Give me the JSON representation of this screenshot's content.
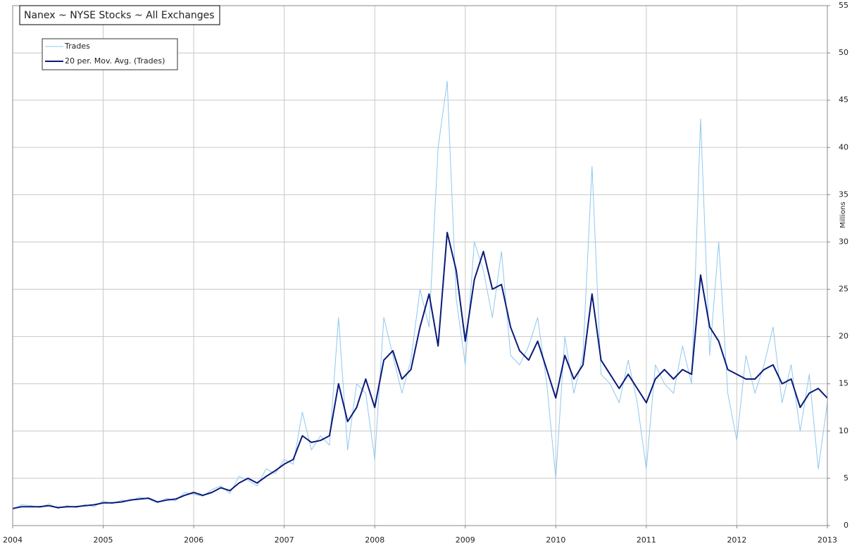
{
  "chart_data": {
    "type": "line",
    "title": "Nanex ~ NYSE Stocks ~ All Exchanges",
    "y_label": "Millions",
    "x": [
      2004.0,
      2004.1,
      2004.2,
      2004.3,
      2004.4,
      2004.5,
      2004.6,
      2004.7,
      2004.8,
      2004.9,
      2005.0,
      2005.1,
      2005.2,
      2005.3,
      2005.4,
      2005.5,
      2005.6,
      2005.7,
      2005.8,
      2005.9,
      2006.0,
      2006.1,
      2006.2,
      2006.3,
      2006.4,
      2006.5,
      2006.6,
      2006.7,
      2006.8,
      2006.9,
      2007.0,
      2007.1,
      2007.2,
      2007.3,
      2007.4,
      2007.5,
      2007.6,
      2007.7,
      2007.8,
      2007.9,
      2008.0,
      2008.1,
      2008.2,
      2008.3,
      2008.4,
      2008.5,
      2008.6,
      2008.7,
      2008.8,
      2008.9,
      2009.0,
      2009.1,
      2009.2,
      2009.3,
      2009.4,
      2009.5,
      2009.6,
      2009.7,
      2009.8,
      2009.9,
      2010.0,
      2010.1,
      2010.2,
      2010.3,
      2010.4,
      2010.5,
      2010.6,
      2010.7,
      2010.8,
      2010.9,
      2011.0,
      2011.1,
      2011.2,
      2011.3,
      2011.4,
      2011.5,
      2011.6,
      2011.7,
      2011.8,
      2011.9,
      2012.0,
      2012.1,
      2012.2,
      2012.3,
      2012.4,
      2012.5,
      2012.6,
      2012.7,
      2012.8,
      2012.9,
      2013.0
    ],
    "series": [
      {
        "name": "Trades",
        "color": "#8ec8f0",
        "width": 1,
        "values": [
          1.7,
          2.2,
          2.1,
          1.9,
          2.3,
          1.8,
          2.1,
          1.9,
          2.2,
          2.0,
          2.6,
          2.3,
          2.7,
          2.6,
          3.0,
          2.8,
          2.4,
          2.9,
          2.6,
          3.5,
          3.3,
          3.1,
          3.8,
          4.2,
          3.4,
          5.2,
          4.8,
          4.2,
          6.0,
          5.5,
          7.0,
          6.5,
          12.0,
          8.0,
          9.5,
          8.5,
          22.0,
          8.0,
          15.0,
          14.0,
          7.0,
          22.0,
          18.0,
          14.0,
          17.5,
          25.0,
          21.0,
          40.0,
          47.0,
          24.0,
          17.0,
          30.0,
          27.0,
          22.0,
          29.0,
          18.0,
          17.0,
          19.0,
          22.0,
          15.0,
          5.0,
          20.0,
          14.0,
          18.0,
          38.0,
          16.0,
          15.0,
          13.0,
          17.5,
          13.0,
          6.0,
          17.0,
          15.0,
          14.0,
          19.0,
          15.0,
          43.0,
          18.0,
          30.0,
          14.0,
          9.0,
          18.0,
          14.0,
          17.0,
          21.0,
          13.0,
          17.0,
          10.0,
          16.0,
          6.0,
          13.0
        ]
      },
      {
        "name": "20 per. Mov. Avg. (Trades)",
        "color": "#0a1a7a",
        "width": 2,
        "values": [
          1.8,
          2.0,
          2.0,
          2.0,
          2.1,
          1.9,
          2.0,
          2.0,
          2.1,
          2.2,
          2.4,
          2.4,
          2.5,
          2.7,
          2.8,
          2.9,
          2.5,
          2.7,
          2.8,
          3.2,
          3.5,
          3.2,
          3.5,
          4.0,
          3.7,
          4.5,
          5.0,
          4.5,
          5.2,
          5.8,
          6.5,
          7.0,
          9.5,
          8.8,
          9.0,
          9.5,
          15.0,
          11.0,
          12.5,
          15.5,
          12.5,
          17.5,
          18.5,
          15.5,
          16.5,
          21.0,
          24.5,
          19.0,
          31.0,
          27.0,
          19.5,
          26.0,
          29.0,
          25.0,
          25.5,
          21.0,
          18.5,
          17.5,
          19.5,
          16.5,
          13.5,
          18.0,
          15.5,
          17.0,
          24.5,
          17.5,
          16.0,
          14.5,
          16.0,
          14.5,
          13.0,
          15.5,
          16.5,
          15.5,
          16.5,
          16.0,
          26.5,
          21.0,
          19.5,
          16.5,
          16.0,
          15.5,
          15.5,
          16.5,
          17.0,
          15.0,
          15.5,
          12.5,
          14.0,
          14.5,
          13.5
        ]
      }
    ],
    "xlim": [
      2004,
      2013
    ],
    "xticks": [
      2004,
      2005,
      2006,
      2007,
      2008,
      2009,
      2010,
      2011,
      2012,
      2013
    ],
    "ylim": [
      0,
      55
    ],
    "yticks": [
      0,
      5,
      10,
      15,
      20,
      25,
      30,
      35,
      40,
      45,
      50,
      55
    ],
    "grid": true,
    "legend": "upper left"
  }
}
